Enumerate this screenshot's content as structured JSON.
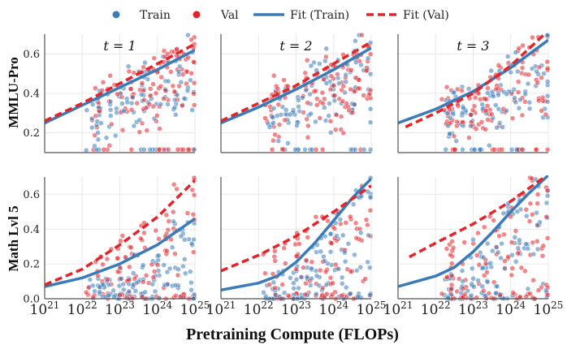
{
  "colors": {
    "train": "#3b7bb8",
    "val": "#e3242b",
    "axis": "#555555",
    "grid": "#e8e8e8"
  },
  "legend": [
    {
      "label": "Train",
      "kind": "marker",
      "series": "train"
    },
    {
      "label": "Val",
      "kind": "marker",
      "series": "val"
    },
    {
      "label": "Fit (Train)",
      "kind": "line",
      "series": "train"
    },
    {
      "label": "Fit (Val)",
      "kind": "dashed",
      "series": "val"
    }
  ],
  "labels": {
    "xlabel": "Pretraining Compute (FLOPs)"
  },
  "chart_data": {
    "type": "scatter",
    "xscale": "log10",
    "xlim_exponent": [
      21,
      25
    ],
    "x_tick_exponents": [
      21,
      22,
      23,
      24,
      25
    ],
    "x_tick_base": "10",
    "rows": [
      {
        "ylabel": "MMLU-Pro",
        "ylim": [
          0.1,
          0.7
        ],
        "yticks": [
          0.2,
          0.4,
          0.6
        ],
        "ytick_labels": [
          "0.2",
          "0.4",
          "0.6"
        ]
      },
      {
        "ylabel": "Math Lvl 5",
        "ylim": [
          0.0,
          0.7
        ],
        "yticks": [
          0.0,
          0.2,
          0.4,
          0.6
        ],
        "ytick_labels": [
          "0.0",
          "0.2",
          "0.4",
          "0.6"
        ]
      }
    ],
    "columns": [
      {
        "title": "t = 1"
      },
      {
        "title": "t = 2"
      },
      {
        "title": "t = 3"
      }
    ],
    "fits": [
      [
        {
          "train": [
            [
              21.0,
              0.25
            ],
            [
              22.0,
              0.34
            ],
            [
              23.0,
              0.43
            ],
            [
              24.0,
              0.52
            ],
            [
              25.0,
              0.62
            ]
          ],
          "val": [
            [
              21.0,
              0.26
            ],
            [
              22.0,
              0.35
            ],
            [
              23.0,
              0.45
            ],
            [
              24.0,
              0.55
            ],
            [
              25.0,
              0.65
            ]
          ]
        },
        {
          "train": [
            [
              21.0,
              0.25
            ],
            [
              22.0,
              0.33
            ],
            [
              23.0,
              0.42
            ],
            [
              24.0,
              0.52
            ],
            [
              25.0,
              0.63
            ]
          ],
          "val": [
            [
              21.0,
              0.26
            ],
            [
              22.0,
              0.35
            ],
            [
              23.0,
              0.44
            ],
            [
              24.0,
              0.55
            ],
            [
              25.0,
              0.66
            ]
          ]
        },
        {
          "train": [
            [
              21.0,
              0.25
            ],
            [
              22.0,
              0.32
            ],
            [
              23.0,
              0.41
            ],
            [
              24.0,
              0.53
            ],
            [
              25.0,
              0.67
            ]
          ],
          "val": [
            [
              21.2,
              0.23
            ],
            [
              22.0,
              0.3
            ],
            [
              23.0,
              0.4
            ],
            [
              24.0,
              0.54
            ],
            [
              24.9,
              0.7
            ]
          ]
        }
      ],
      [
        {
          "train": [
            [
              21.0,
              0.07
            ],
            [
              22.0,
              0.12
            ],
            [
              23.0,
              0.2
            ],
            [
              24.0,
              0.31
            ],
            [
              25.0,
              0.46
            ]
          ],
          "val": [
            [
              21.0,
              0.08
            ],
            [
              22.0,
              0.17
            ],
            [
              23.0,
              0.31
            ],
            [
              24.0,
              0.47
            ],
            [
              25.0,
              0.68
            ]
          ]
        },
        {
          "train": [
            [
              21.0,
              0.05
            ],
            [
              22.0,
              0.09
            ],
            [
              22.5,
              0.13
            ],
            [
              23.0,
              0.21
            ],
            [
              23.5,
              0.32
            ],
            [
              24.0,
              0.45
            ],
            [
              24.5,
              0.58
            ],
            [
              25.0,
              0.69
            ]
          ],
          "val": [
            [
              21.0,
              0.16
            ],
            [
              22.0,
              0.25
            ],
            [
              23.0,
              0.36
            ],
            [
              24.0,
              0.5
            ],
            [
              25.0,
              0.65
            ]
          ]
        },
        {
          "train": [
            [
              21.0,
              0.07
            ],
            [
              22.0,
              0.13
            ],
            [
              22.5,
              0.18
            ],
            [
              23.0,
              0.27
            ],
            [
              23.5,
              0.38
            ],
            [
              24.0,
              0.5
            ],
            [
              24.5,
              0.61
            ],
            [
              25.0,
              0.71
            ]
          ],
          "val": [
            [
              21.3,
              0.24
            ],
            [
              22.0,
              0.32
            ],
            [
              23.0,
              0.43
            ],
            [
              24.0,
              0.56
            ],
            [
              24.9,
              0.7
            ]
          ]
        }
      ]
    ],
    "scatter_note": "Dense clouds of Train and Val points spanning roughly 1e22 to 1e25 FLOPs in every panel."
  }
}
